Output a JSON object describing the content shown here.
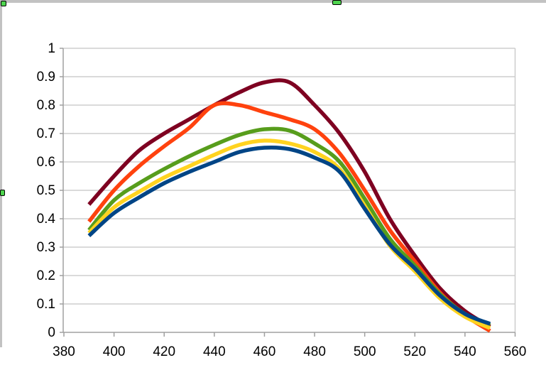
{
  "window": {
    "selection_handles": [
      "top-left",
      "top-center",
      "left-center"
    ],
    "handle_color": "#4ed44e",
    "frame_color": "#c2c2c2",
    "background_color": "#ffffff"
  },
  "chart_data": {
    "type": "line",
    "title": "",
    "xlabel": "",
    "ylabel": "",
    "legend": "none",
    "grid": "horizontal",
    "xlim": [
      380,
      560
    ],
    "ylim": [
      0,
      1
    ],
    "x_tick_labels": [
      "380",
      "400",
      "420",
      "440",
      "460",
      "480",
      "500",
      "520",
      "540",
      "560"
    ],
    "x_tick_values": [
      380,
      400,
      420,
      440,
      460,
      480,
      500,
      520,
      540,
      560
    ],
    "y_tick_labels": [
      "0",
      "0.1",
      "0.2",
      "0.3",
      "0.4",
      "0.5",
      "0.6",
      "0.7",
      "0.8",
      "0.9",
      "1"
    ],
    "y_tick_values": [
      0,
      0.1,
      0.2,
      0.3,
      0.4,
      0.5,
      0.6,
      0.7,
      0.8,
      0.9,
      1
    ],
    "x": [
      390,
      400,
      410,
      420,
      430,
      440,
      450,
      460,
      470,
      480,
      490,
      500,
      510,
      520,
      530,
      540,
      550
    ],
    "series": [
      {
        "name": "dark-red",
        "color": "#7E0021",
        "values": [
          0.45,
          0.55,
          0.64,
          0.7,
          0.75,
          0.8,
          0.845,
          0.88,
          0.88,
          0.8,
          0.7,
          0.565,
          0.4,
          0.27,
          0.155,
          0.075,
          0.02
        ]
      },
      {
        "name": "orange",
        "color": "#FF420E",
        "values": [
          0.39,
          0.5,
          0.585,
          0.655,
          0.72,
          0.8,
          0.8,
          0.775,
          0.75,
          0.715,
          0.63,
          0.5,
          0.36,
          0.25,
          0.14,
          0.06,
          0.005
        ]
      },
      {
        "name": "green",
        "color": "#579D1C",
        "values": [
          0.36,
          0.465,
          0.525,
          0.575,
          0.62,
          0.66,
          0.695,
          0.715,
          0.71,
          0.665,
          0.6,
          0.47,
          0.33,
          0.235,
          0.135,
          0.065,
          0.025
        ]
      },
      {
        "name": "yellow",
        "color": "#FFD320",
        "values": [
          0.35,
          0.44,
          0.495,
          0.545,
          0.585,
          0.625,
          0.66,
          0.675,
          0.665,
          0.635,
          0.575,
          0.445,
          0.305,
          0.215,
          0.12,
          0.055,
          0.015
        ]
      },
      {
        "name": "blue",
        "color": "#004586",
        "values": [
          0.34,
          0.42,
          0.475,
          0.525,
          0.565,
          0.6,
          0.635,
          0.65,
          0.645,
          0.615,
          0.565,
          0.435,
          0.31,
          0.225,
          0.13,
          0.065,
          0.03
        ]
      }
    ],
    "style": {
      "grid_color": "#cdcdcd",
      "axis_color": "#a0a0a0",
      "tick_label_color": "#000000",
      "line_width": 5.5
    }
  }
}
